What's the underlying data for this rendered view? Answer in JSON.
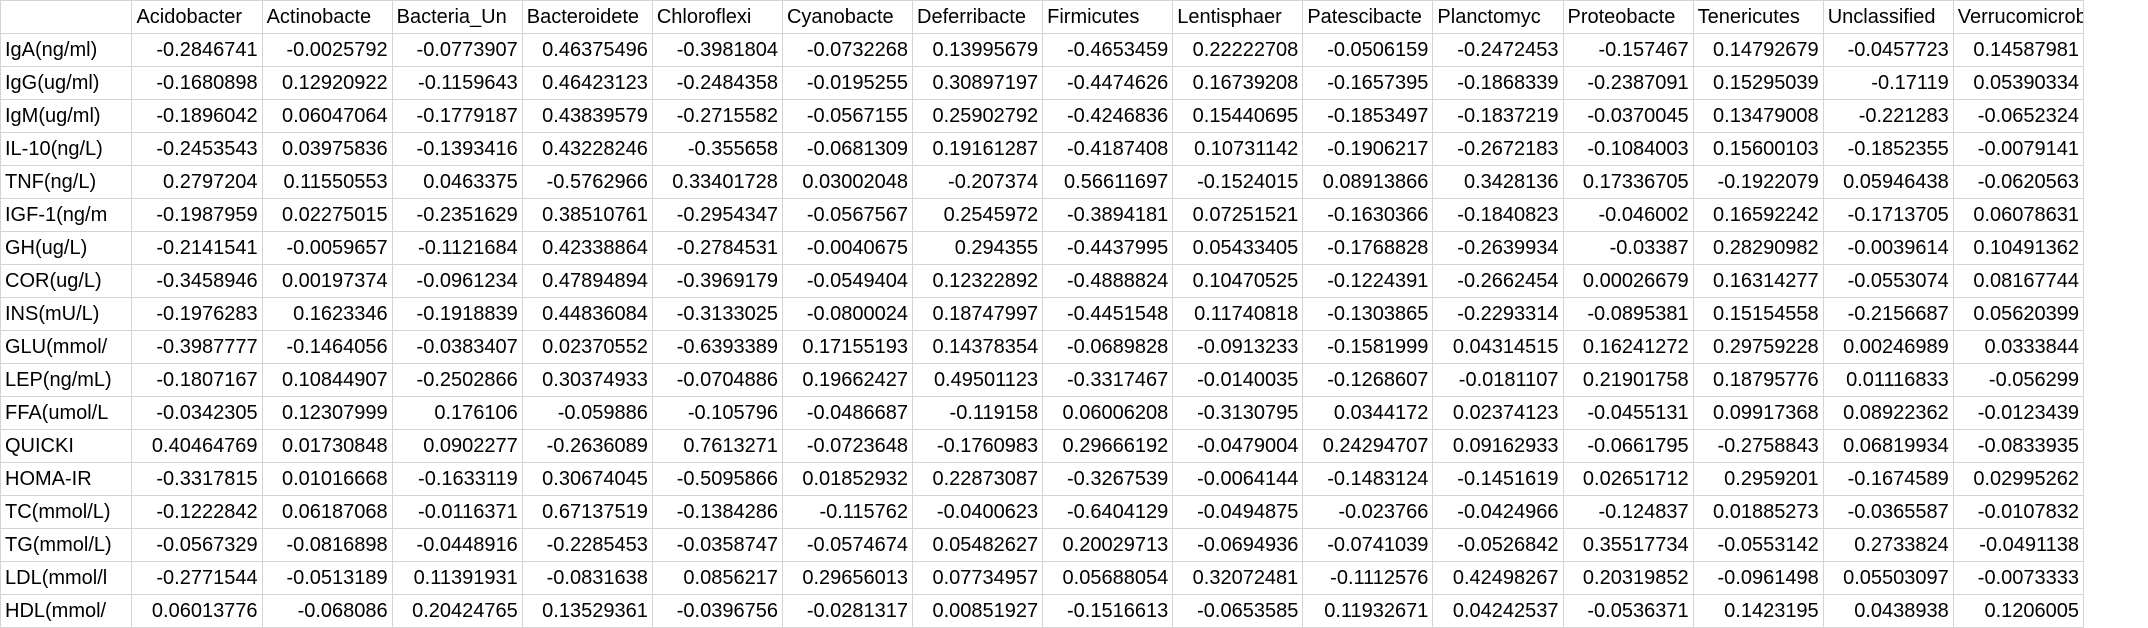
{
  "sheet": {
    "columns": [
      "",
      "Acidobacter",
      "Actinobacte",
      "Bacteria_Un",
      "Bacteroidete",
      "Chloroflexi",
      "Cyanobacte",
      "Deferribacte",
      "Firmicutes",
      "Lentisphaer",
      "Patescibacte",
      "Planctomyc",
      "Proteobacte",
      "Tenericutes",
      "Unclassified",
      "Verrucomicrobia"
    ],
    "rows": [
      {
        "label": "IgA(ng/ml)",
        "values": [
          "-0.2846741",
          "-0.0025792",
          "-0.0773907",
          "0.46375496",
          "-0.3981804",
          "-0.0732268",
          "0.13995679",
          "-0.4653459",
          "0.22222708",
          "-0.0506159",
          "-0.2472453",
          "-0.157467",
          "0.14792679",
          "-0.0457723",
          "0.14587981"
        ]
      },
      {
        "label": "IgG(ug/ml)",
        "values": [
          "-0.1680898",
          "0.12920922",
          "-0.1159643",
          "0.46423123",
          "-0.2484358",
          "-0.0195255",
          "0.30897197",
          "-0.4474626",
          "0.16739208",
          "-0.1657395",
          "-0.1868339",
          "-0.2387091",
          "0.15295039",
          "-0.17119",
          "0.05390334"
        ]
      },
      {
        "label": "IgM(ug/ml)",
        "values": [
          "-0.1896042",
          "0.06047064",
          "-0.1779187",
          "0.43839579",
          "-0.2715582",
          "-0.0567155",
          "0.25902792",
          "-0.4246836",
          "0.15440695",
          "-0.1853497",
          "-0.1837219",
          "-0.0370045",
          "0.13479008",
          "-0.221283",
          "-0.0652324"
        ]
      },
      {
        "label": "IL-10(ng/L)",
        "values": [
          "-0.2453543",
          "0.03975836",
          "-0.1393416",
          "0.43228246",
          "-0.355658",
          "-0.0681309",
          "0.19161287",
          "-0.4187408",
          "0.10731142",
          "-0.1906217",
          "-0.2672183",
          "-0.1084003",
          "0.15600103",
          "-0.1852355",
          "-0.0079141"
        ]
      },
      {
        "label": "TNF(ng/L)",
        "values": [
          "0.2797204",
          "0.11550553",
          "0.0463375",
          "-0.5762966",
          "0.33401728",
          "0.03002048",
          "-0.207374",
          "0.56611697",
          "-0.1524015",
          "0.08913866",
          "0.3428136",
          "0.17336705",
          "-0.1922079",
          "0.05946438",
          "-0.0620563"
        ]
      },
      {
        "label": "IGF-1(ng/m",
        "values": [
          "-0.1987959",
          "0.02275015",
          "-0.2351629",
          "0.38510761",
          "-0.2954347",
          "-0.0567567",
          "0.2545972",
          "-0.3894181",
          "0.07251521",
          "-0.1630366",
          "-0.1840823",
          "-0.046002",
          "0.16592242",
          "-0.1713705",
          "0.06078631"
        ]
      },
      {
        "label": "GH(ug/L)",
        "values": [
          "-0.2141541",
          "-0.0059657",
          "-0.1121684",
          "0.42338864",
          "-0.2784531",
          "-0.0040675",
          "0.294355",
          "-0.4437995",
          "0.05433405",
          "-0.1768828",
          "-0.2639934",
          "-0.03387",
          "0.28290982",
          "-0.0039614",
          "0.10491362"
        ]
      },
      {
        "label": "COR(ug/L)",
        "values": [
          "-0.3458946",
          "0.00197374",
          "-0.0961234",
          "0.47894894",
          "-0.3969179",
          "-0.0549404",
          "0.12322892",
          "-0.4888824",
          "0.10470525",
          "-0.1224391",
          "-0.2662454",
          "0.00026679",
          "0.16314277",
          "-0.0553074",
          "0.08167744"
        ]
      },
      {
        "label": "INS(mU/L)",
        "values": [
          "-0.1976283",
          "0.1623346",
          "-0.1918839",
          "0.44836084",
          "-0.3133025",
          "-0.0800024",
          "0.18747997",
          "-0.4451548",
          "0.11740818",
          "-0.1303865",
          "-0.2293314",
          "-0.0895381",
          "0.15154558",
          "-0.2156687",
          "0.05620399"
        ]
      },
      {
        "label": "GLU(mmol/",
        "values": [
          "-0.3987777",
          "-0.1464056",
          "-0.0383407",
          "0.02370552",
          "-0.6393389",
          "0.17155193",
          "0.14378354",
          "-0.0689828",
          "-0.0913233",
          "-0.1581999",
          "0.04314515",
          "0.16241272",
          "0.29759228",
          "0.00246989",
          "0.0333844"
        ]
      },
      {
        "label": "LEP(ng/mL)",
        "values": [
          "-0.1807167",
          "0.10844907",
          "-0.2502866",
          "0.30374933",
          "-0.0704886",
          "0.19662427",
          "0.49501123",
          "-0.3317467",
          "-0.0140035",
          "-0.1268607",
          "-0.0181107",
          "0.21901758",
          "0.18795776",
          "0.01116833",
          "-0.056299"
        ]
      },
      {
        "label": "FFA(umol/L",
        "values": [
          "-0.0342305",
          "0.12307999",
          "0.176106",
          "-0.059886",
          "-0.105796",
          "-0.0486687",
          "-0.119158",
          "0.06006208",
          "-0.3130795",
          "0.0344172",
          "0.02374123",
          "-0.0455131",
          "0.09917368",
          "0.08922362",
          "-0.0123439"
        ]
      },
      {
        "label": "QUICKI",
        "values": [
          "0.40464769",
          "0.01730848",
          "0.0902277",
          "-0.2636089",
          "0.7613271",
          "-0.0723648",
          "-0.1760983",
          "0.29666192",
          "-0.0479004",
          "0.24294707",
          "0.09162933",
          "-0.0661795",
          "-0.2758843",
          "0.06819934",
          "-0.0833935"
        ]
      },
      {
        "label": "HOMA-IR",
        "values": [
          "-0.3317815",
          "0.01016668",
          "-0.1633119",
          "0.30674045",
          "-0.5095866",
          "0.01852932",
          "0.22873087",
          "-0.3267539",
          "-0.0064144",
          "-0.1483124",
          "-0.1451619",
          "0.02651712",
          "0.2959201",
          "-0.1674589",
          "0.02995262"
        ]
      },
      {
        "label": "TC(mmol/L)",
        "values": [
          "-0.1222842",
          "0.06187068",
          "-0.0116371",
          "0.67137519",
          "-0.1384286",
          "-0.115762",
          "-0.0400623",
          "-0.6404129",
          "-0.0494875",
          "-0.023766",
          "-0.0424966",
          "-0.124837",
          "0.01885273",
          "-0.0365587",
          "-0.0107832"
        ]
      },
      {
        "label": "TG(mmol/L)",
        "values": [
          "-0.0567329",
          "-0.0816898",
          "-0.0448916",
          "-0.2285453",
          "-0.0358747",
          "-0.0574674",
          "0.05482627",
          "0.20029713",
          "-0.0694936",
          "-0.0741039",
          "-0.0526842",
          "0.35517734",
          "-0.0553142",
          "0.2733824",
          "-0.0491138"
        ]
      },
      {
        "label": "LDL(mmol/l",
        "values": [
          "-0.2771544",
          "-0.0513189",
          "0.11391931",
          "-0.0831638",
          "0.0856217",
          "0.29656013",
          "0.07734957",
          "0.05688054",
          "0.32072481",
          "-0.1112576",
          "0.42498267",
          "0.20319852",
          "-0.0961498",
          "0.05503097",
          "-0.0073333"
        ]
      },
      {
        "label": "HDL(mmol/",
        "values": [
          "0.06013776",
          "-0.068086",
          "0.20424765",
          "0.13529361",
          "-0.0396756",
          "-0.0281317",
          "0.00851927",
          "-0.1516613",
          "-0.0653585",
          "0.11932671",
          "0.04242537",
          "-0.0536371",
          "0.1423195",
          "0.0438938",
          "0.1206005"
        ]
      }
    ]
  }
}
